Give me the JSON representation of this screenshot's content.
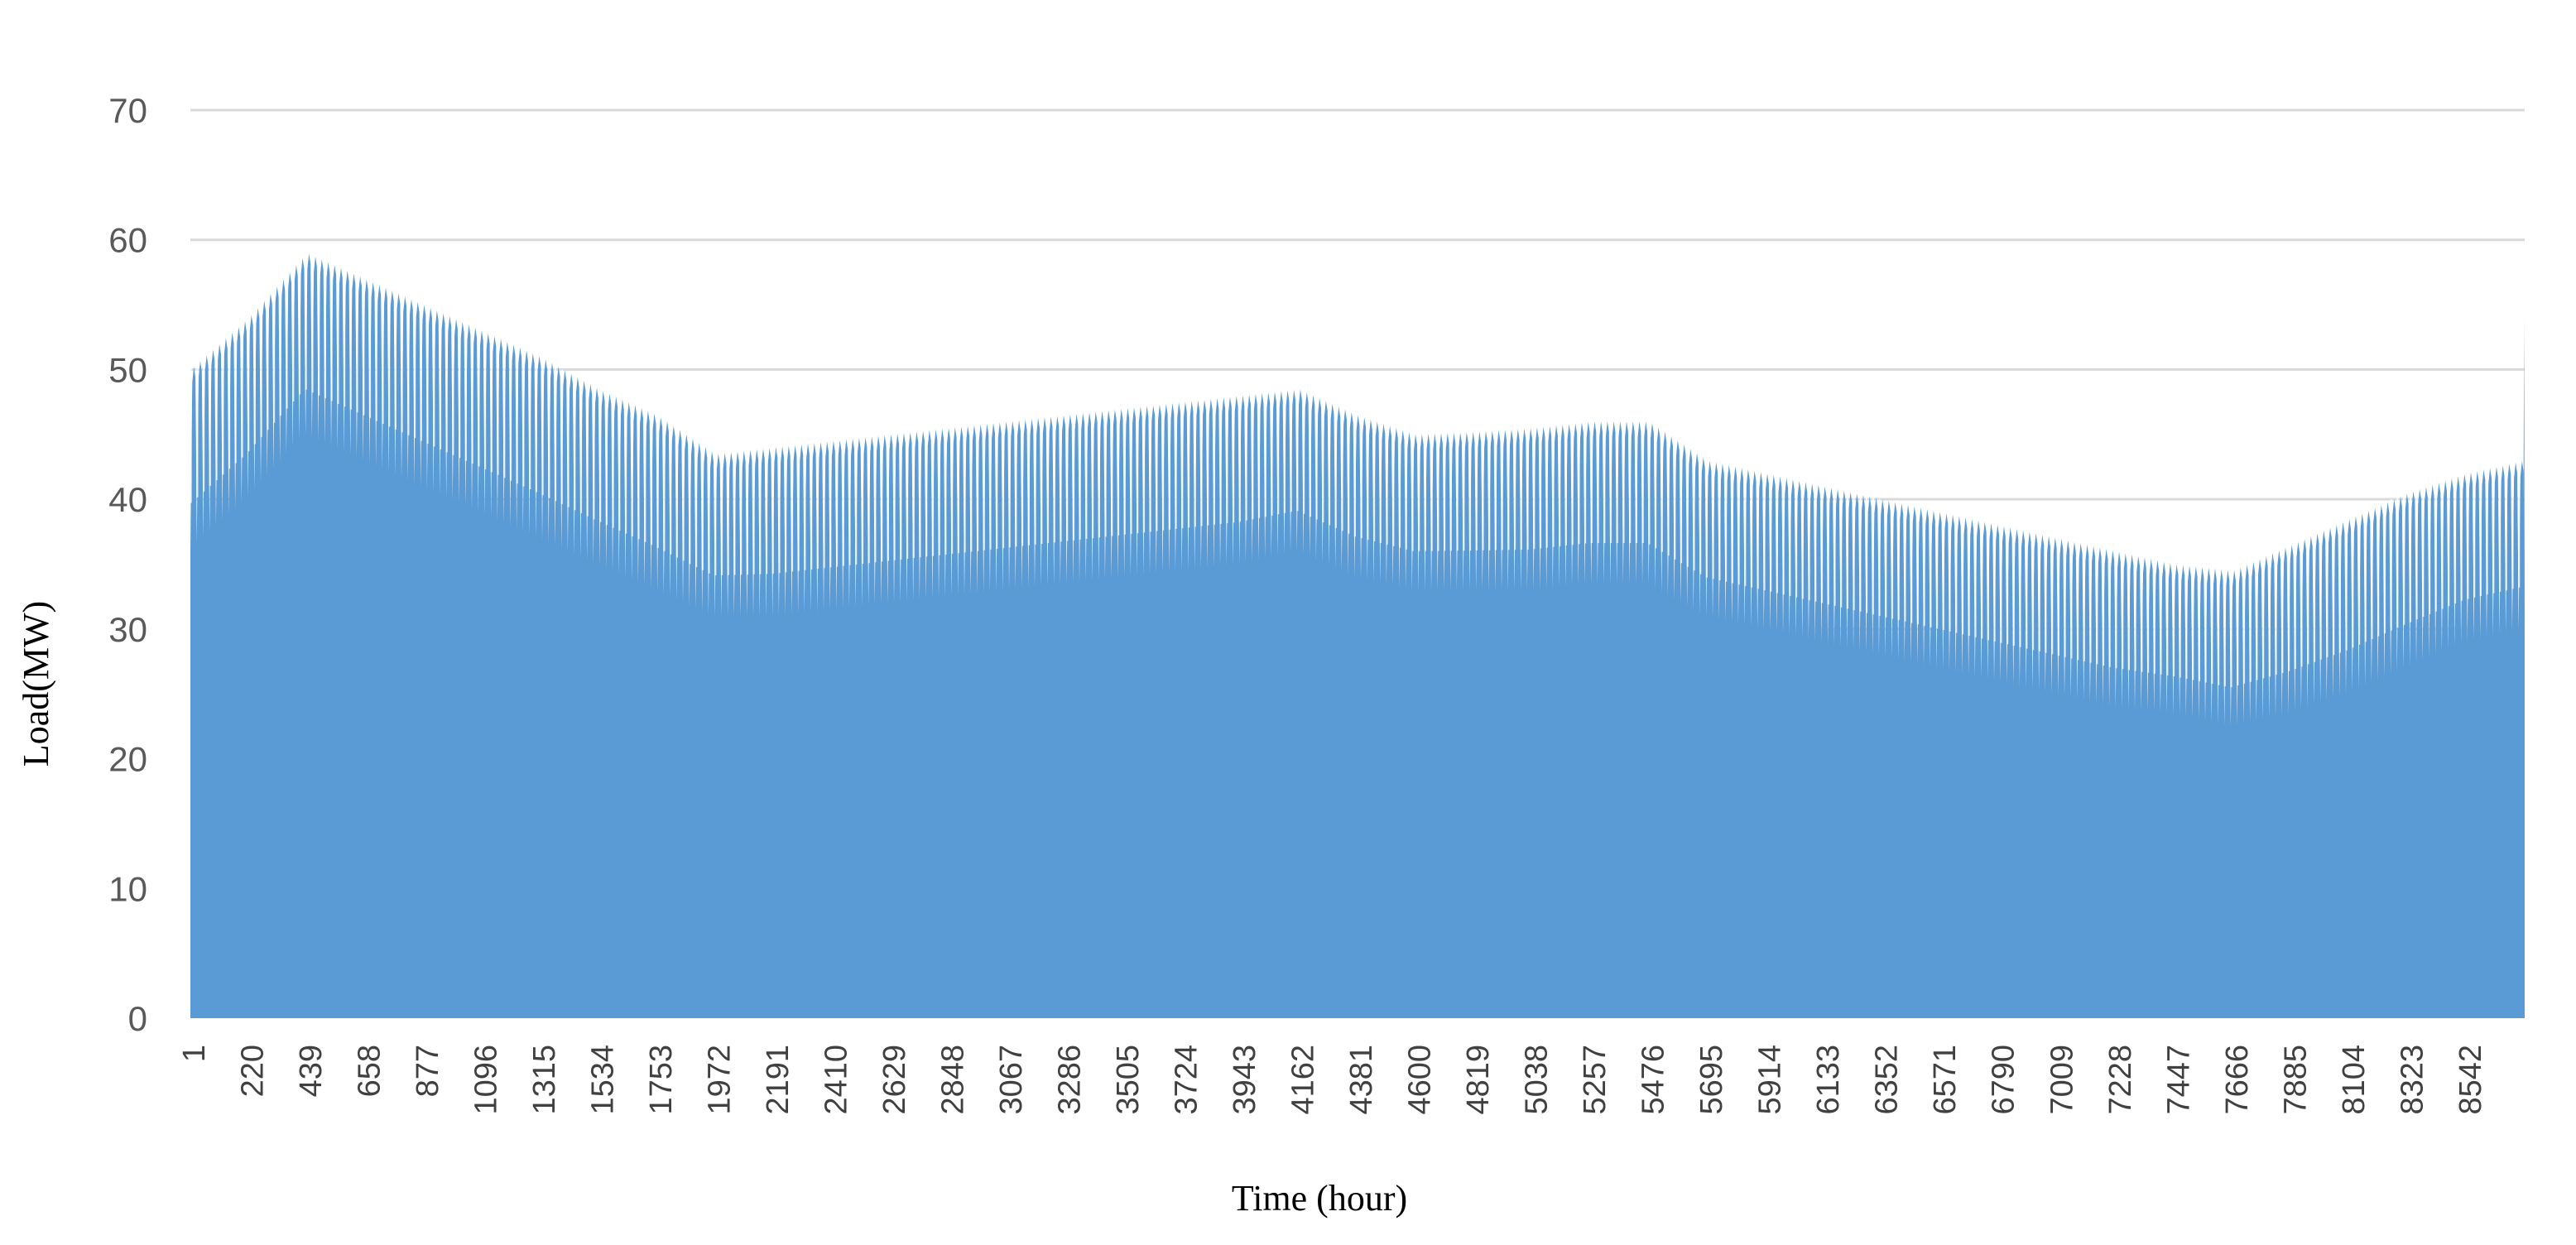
{
  "chart_data": {
    "type": "area",
    "xlabel": "Time (hour)",
    "ylabel": "Load(MW)",
    "ylim": [
      0,
      70
    ],
    "yticks": [
      0,
      10,
      20,
      30,
      40,
      50,
      60,
      70
    ],
    "xlim": [
      1,
      8760
    ],
    "grid": true,
    "legend": "none",
    "fill_color": "#5b9bd5",
    "xtick_labels": [
      "1",
      "220",
      "439",
      "658",
      "877",
      "1096",
      "1315",
      "1534",
      "1753",
      "1972",
      "2191",
      "2410",
      "2629",
      "2848",
      "3067",
      "3286",
      "3505",
      "3724",
      "3943",
      "4162",
      "4381",
      "4600",
      "4819",
      "5038",
      "5257",
      "5476",
      "5695",
      "5914",
      "6133",
      "6352",
      "6571",
      "6790",
      "7009",
      "7228",
      "7447",
      "7666",
      "7885",
      "8104",
      "8323",
      "8542"
    ],
    "series": [
      {
        "values_note_free": true,
        "daily_peak": {
          "x": [
            1,
            220,
            439,
            658,
            877,
            1096,
            1315,
            1534,
            1753,
            1972,
            2191,
            2410,
            2629,
            2848,
            3067,
            3286,
            3505,
            3724,
            3943,
            4162,
            4381,
            4600,
            4819,
            5038,
            5257,
            5476,
            5695,
            5914,
            6133,
            6352,
            6571,
            6790,
            7009,
            7228,
            7447,
            7666,
            7885,
            8104,
            8323,
            8542,
            8760
          ],
          "y": [
            50,
            54,
            59,
            57,
            55,
            53,
            51,
            48.5,
            46.5,
            43.5,
            44,
            44.5,
            45,
            45.5,
            46,
            46.5,
            47,
            47.5,
            48,
            48.5,
            46.5,
            45,
            45.2,
            45.5,
            46,
            46,
            43,
            42,
            41,
            40,
            39,
            38,
            37,
            36,
            35,
            34.5,
            36.5,
            38.5,
            40.5,
            42,
            43
          ]
        },
        "daily_min": {
          "x": [
            1,
            220,
            439,
            658,
            877,
            1096,
            1315,
            1534,
            1753,
            1972,
            2191,
            2410,
            2629,
            2848,
            3067,
            3286,
            3505,
            3724,
            3943,
            4162,
            4381,
            4600,
            4819,
            5038,
            5257,
            5476,
            5695,
            5914,
            6133,
            6352,
            6571,
            6790,
            7009,
            7228,
            7447,
            7666,
            7885,
            8104,
            8323,
            8542,
            8760
          ],
          "y": [
            36,
            40,
            45,
            43,
            41,
            39,
            37,
            35,
            33,
            31,
            31,
            31.5,
            32,
            32.5,
            33,
            33.5,
            34,
            34.5,
            35,
            36,
            34,
            33,
            33,
            33,
            33.5,
            33.5,
            31,
            30,
            29,
            28,
            27,
            26,
            25,
            24,
            23.5,
            22.5,
            23.5,
            25,
            27,
            29,
            30
          ]
        },
        "final_spike": {
          "x": 8758,
          "y": 54
        }
      }
    ]
  }
}
